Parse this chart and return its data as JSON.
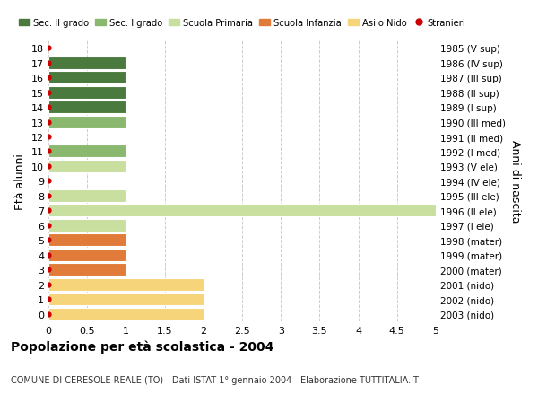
{
  "ages": [
    0,
    1,
    2,
    3,
    4,
    5,
    6,
    7,
    8,
    9,
    10,
    11,
    12,
    13,
    14,
    15,
    16,
    17,
    18
  ],
  "right_labels": [
    "2003 (nido)",
    "2002 (nido)",
    "2001 (nido)",
    "2000 (mater)",
    "1999 (mater)",
    "1998 (mater)",
    "1997 (I ele)",
    "1996 (II ele)",
    "1995 (III ele)",
    "1994 (IV ele)",
    "1993 (V ele)",
    "1992 (I med)",
    "1991 (II med)",
    "1990 (III med)",
    "1989 (I sup)",
    "1988 (II sup)",
    "1987 (III sup)",
    "1986 (IV sup)",
    "1985 (V sup)"
  ],
  "bar_values": [
    2.0,
    2.0,
    2.0,
    1.0,
    1.0,
    1.0,
    1.0,
    5.0,
    1.0,
    0.0,
    1.0,
    1.0,
    0.0,
    1.0,
    1.0,
    1.0,
    1.0,
    1.0,
    0.0
  ],
  "bar_colors": [
    "#f5d47a",
    "#f5d47a",
    "#f5d47a",
    "#e07b39",
    "#e07b39",
    "#e07b39",
    "#c8dfa0",
    "#c8dfa0",
    "#c8dfa0",
    "#c8dfa0",
    "#c8dfa0",
    "#8ab86e",
    "#8ab86e",
    "#8ab86e",
    "#4a7a3d",
    "#4a7a3d",
    "#4a7a3d",
    "#4a7a3d",
    "#4a7a3d"
  ],
  "xlim": [
    0,
    5.0
  ],
  "xticks": [
    0,
    0.5,
    1.0,
    1.5,
    2.0,
    2.5,
    3.0,
    3.5,
    4.0,
    4.5,
    5.0
  ],
  "ylabel": "Età alunni",
  "right_ylabel": "Anni di nascita",
  "title": "Popolazione per età scolastica - 2004",
  "subtitle": "COMUNE DI CERESOLE REALE (TO) - Dati ISTAT 1° gennaio 2004 - Elaborazione TUTTITALIA.IT",
  "legend_items": [
    {
      "label": "Sec. II grado",
      "color": "#4a7a3d"
    },
    {
      "label": "Sec. I grado",
      "color": "#8ab86e"
    },
    {
      "label": "Scuola Primaria",
      "color": "#c8dfa0"
    },
    {
      "label": "Scuola Infanzia",
      "color": "#e07b39"
    },
    {
      "label": "Asilo Nido",
      "color": "#f5d47a"
    },
    {
      "label": "Stranieri",
      "color": "#cc0000"
    }
  ],
  "stranieri_color": "#cc0000",
  "bg_color": "#ffffff",
  "grid_color": "#cccccc",
  "bar_height": 0.85
}
